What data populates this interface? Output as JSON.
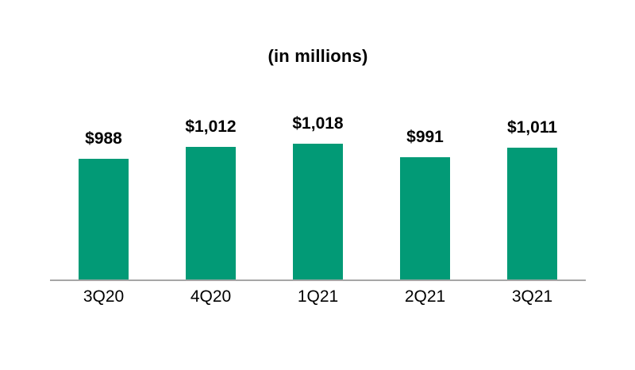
{
  "chart_data": {
    "type": "bar",
    "title": "(in millions)",
    "categories": [
      "3Q20",
      "4Q20",
      "1Q21",
      "2Q21",
      "3Q21"
    ],
    "values": [
      988,
      1012,
      1018,
      991,
      1011
    ],
    "value_labels": [
      "$988",
      "$1,012",
      "$1,018",
      "$991",
      "$1,011"
    ],
    "xlabel": "",
    "ylabel": "",
    "ylim": [
      745,
      1020
    ],
    "grid": false,
    "legend_position": "none",
    "bar_color": "#029a76",
    "axis_line_color": "#a6a6a6",
    "label_color": "#000000"
  }
}
